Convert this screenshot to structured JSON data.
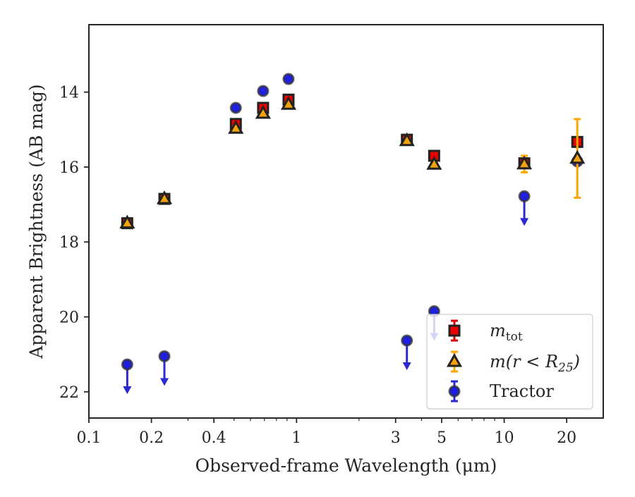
{
  "chart_data": {
    "type": "scatter",
    "title": "",
    "xlabel": "Observed-frame Wavelength (μm)",
    "ylabel": "Apparent Brightness (AB mag)",
    "xscale": "log",
    "yinverted": true,
    "xlim": [
      0.1,
      30
    ],
    "ylim": [
      22.7,
      12.2
    ],
    "xticks": [
      {
        "value": 0.1,
        "label": "0.1"
      },
      {
        "value": 0.2,
        "label": "0.2"
      },
      {
        "value": 0.4,
        "label": "0.4"
      },
      {
        "value": 1,
        "label": "1"
      },
      {
        "value": 3,
        "label": "3"
      },
      {
        "value": 5,
        "label": "5"
      },
      {
        "value": 10,
        "label": "10"
      },
      {
        "value": 20,
        "label": "20"
      }
    ],
    "yticks": [
      {
        "value": 14,
        "label": "14"
      },
      {
        "value": 16,
        "label": "16"
      },
      {
        "value": 18,
        "label": "18"
      },
      {
        "value": 20,
        "label": "20"
      },
      {
        "value": 22,
        "label": "22"
      }
    ],
    "legend_position": "lower right",
    "series": [
      {
        "name": "m_tot",
        "label_main": "m",
        "label_sub": "tot",
        "marker": "square",
        "color": "#ee0000",
        "errcolor": "#dd0000",
        "points": [
          {
            "x": 0.153,
            "y": 17.5,
            "err": 0.05
          },
          {
            "x": 0.231,
            "y": 16.85,
            "err": 0.05
          },
          {
            "x": 0.51,
            "y": 14.85,
            "err": 0.05
          },
          {
            "x": 0.69,
            "y": 14.42,
            "err": 0.05
          },
          {
            "x": 0.915,
            "y": 14.2,
            "err": 0.05
          },
          {
            "x": 3.4,
            "y": 15.27,
            "err": 0.05
          },
          {
            "x": 4.6,
            "y": 15.7,
            "err": 0.05
          },
          {
            "x": 12.5,
            "y": 15.9,
            "err": 0.12
          },
          {
            "x": 22.5,
            "y": 15.33,
            "err": 0.12
          }
        ]
      },
      {
        "name": "m(r<R25)",
        "label_main": "m(r < R",
        "label_sub": "25",
        "label_tail": ")",
        "marker": "triangle",
        "color": "#f2a20a",
        "errcolor": "#ffa500",
        "points": [
          {
            "x": 0.153,
            "y": 17.5,
            "err": 0.05
          },
          {
            "x": 0.231,
            "y": 16.85,
            "err": 0.05
          },
          {
            "x": 0.51,
            "y": 14.97,
            "err": 0.05
          },
          {
            "x": 0.69,
            "y": 14.57,
            "err": 0.05
          },
          {
            "x": 0.915,
            "y": 14.33,
            "err": 0.05
          },
          {
            "x": 3.4,
            "y": 15.3,
            "err": 0.05
          },
          {
            "x": 4.6,
            "y": 15.93,
            "err": 0.05
          },
          {
            "x": 12.5,
            "y": 15.92,
            "err": 0.22
          },
          {
            "x": 22.5,
            "y": 15.77,
            "err": 1.05
          }
        ]
      },
      {
        "name": "Tractor",
        "label_main": "Tractor",
        "marker": "circle",
        "color": "#1f1fe0",
        "errcolor": "#2a2ad0",
        "points": [
          {
            "x": 0.153,
            "y": 21.27,
            "upper_limit": true
          },
          {
            "x": 0.231,
            "y": 21.05,
            "upper_limit": true
          },
          {
            "x": 0.51,
            "y": 14.42,
            "err": 0.05
          },
          {
            "x": 0.69,
            "y": 13.97,
            "err": 0.05
          },
          {
            "x": 0.915,
            "y": 13.65,
            "err": 0.05
          },
          {
            "x": 3.4,
            "y": 20.63,
            "upper_limit": true
          },
          {
            "x": 4.6,
            "y": 19.85,
            "upper_limit": true
          },
          {
            "x": 12.5,
            "y": 16.78,
            "upper_limit": true
          },
          {
            "x": 22.5,
            "y": 15.85,
            "err": 0.08
          }
        ]
      }
    ]
  }
}
